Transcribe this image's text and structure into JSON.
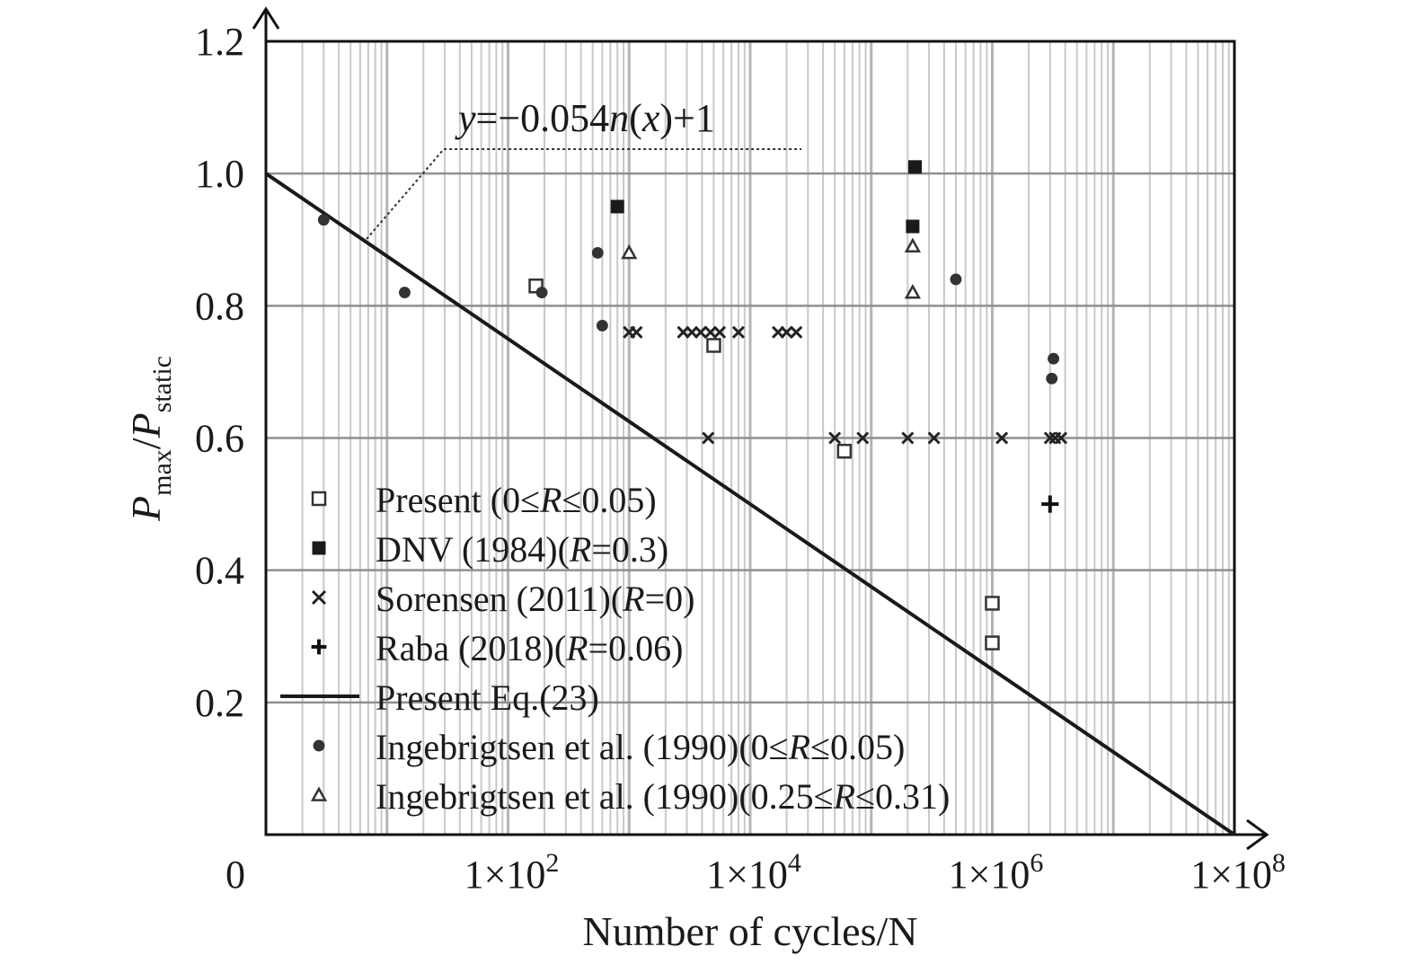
{
  "chart_data": {
    "type": "scatter",
    "xlabel": "Number of cycles/N",
    "ylabel_main": "P",
    "ylabel_sub1": "max",
    "ylabel_slash": "/",
    "ylabel_sub2": "static",
    "x_scale": "log",
    "xlim": [
      1,
      100000000
    ],
    "ylim": [
      0,
      1.2
    ],
    "grid": true,
    "legend_position": "lower-left",
    "x_ticks": [
      {
        "value": 1,
        "label": "0"
      },
      {
        "value": 100,
        "label": "1×10",
        "exp": "2"
      },
      {
        "value": 10000,
        "label": "1×10",
        "exp": "4"
      },
      {
        "value": 1000000,
        "label": "1×10",
        "exp": "6"
      },
      {
        "value": 100000000,
        "label": "1×10",
        "exp": "8"
      }
    ],
    "y_ticks": [
      {
        "value": 0.2,
        "label": "0.2"
      },
      {
        "value": 0.4,
        "label": "0.4"
      },
      {
        "value": 0.6,
        "label": "0.6"
      },
      {
        "value": 0.8,
        "label": "0.8"
      },
      {
        "value": 1.0,
        "label": "1.0"
      },
      {
        "value": 1.2,
        "label": "1.2"
      }
    ],
    "annotation": {
      "y": "y",
      "eq": "=−0.054",
      "n": "n",
      "lp": "(",
      "x": "x",
      "rest": ")+1"
    },
    "fit_line": {
      "name": "Present Eq.(23)",
      "x": [
        1,
        100000000
      ],
      "y": [
        1.0,
        0.0
      ]
    },
    "series": [
      {
        "name": "Present (0≤R≤0.05)",
        "name_parts": [
          "Present (0≤",
          "R",
          "≤0.05)"
        ],
        "marker": "open-square",
        "points": [
          [
            170,
            0.83
          ],
          [
            5000,
            0.74
          ],
          [
            60000,
            0.58
          ],
          [
            1000000,
            0.35
          ],
          [
            1000000,
            0.29
          ]
        ]
      },
      {
        "name": "DNV (1984)(R=0.3)",
        "name_parts": [
          "DNV (1984)(",
          "R",
          "=0.3)"
        ],
        "marker": "filled-square",
        "points": [
          [
            800,
            0.95
          ],
          [
            230000,
            1.01
          ],
          [
            220000,
            0.92
          ]
        ]
      },
      {
        "name": "Sorensen (2011)(R=0)",
        "name_parts": [
          "Sorensen (2011)(",
          "R",
          "=0)"
        ],
        "marker": "x",
        "points": [
          [
            1000,
            0.76
          ],
          [
            1150,
            0.76
          ],
          [
            2800,
            0.76
          ],
          [
            3300,
            0.76
          ],
          [
            3900,
            0.76
          ],
          [
            4700,
            0.76
          ],
          [
            5600,
            0.76
          ],
          [
            8000,
            0.76
          ],
          [
            17000,
            0.76
          ],
          [
            20000,
            0.76
          ],
          [
            24000,
            0.76
          ],
          [
            4500,
            0.6
          ],
          [
            50000,
            0.6
          ],
          [
            85000,
            0.6
          ],
          [
            200000,
            0.6
          ],
          [
            330000,
            0.6
          ],
          [
            1200000,
            0.6
          ],
          [
            3000000,
            0.6
          ],
          [
            3300000,
            0.6
          ],
          [
            3700000,
            0.6
          ]
        ]
      },
      {
        "name": "Raba (2018)(R=0.06)",
        "name_parts": [
          "Raba (2018)(",
          "R",
          "=0.06)"
        ],
        "marker": "plus",
        "points": [
          [
            3000000,
            0.5
          ]
        ]
      },
      {
        "name": "Ingebrigtsen et al. (1990)(0≤R≤0.05)",
        "name_parts": [
          "Ingebrigtsen et al. (1990)(0≤",
          "R",
          "≤0.05)"
        ],
        "marker": "filled-diamond",
        "points": [
          [
            3,
            0.93
          ],
          [
            14,
            0.82
          ],
          [
            190,
            0.82
          ],
          [
            550,
            0.88
          ],
          [
            600,
            0.77
          ],
          [
            500000,
            0.84
          ],
          [
            3200000,
            0.72
          ],
          [
            3100000,
            0.69
          ]
        ]
      },
      {
        "name": "Ingebrigtsen et al. (1990)(0.25≤R≤0.31)",
        "name_parts": [
          "Ingebrigtsen et al. (1990)(0.25≤",
          "R",
          "≤0.31)"
        ],
        "marker": "open-triangle",
        "points": [
          [
            1000,
            0.88
          ],
          [
            220000,
            0.89
          ],
          [
            220000,
            0.82
          ]
        ]
      }
    ]
  }
}
